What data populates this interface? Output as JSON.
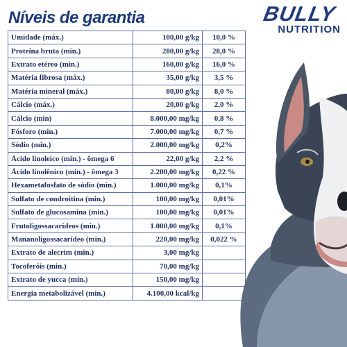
{
  "header": {
    "title": "Níveis de garantia"
  },
  "brand": {
    "name_top": "BULLY",
    "name_bottom": "NUTRITION"
  },
  "table": {
    "rows": [
      {
        "name": "Umidade (máx.)",
        "amount": "100,00 g/kg",
        "percent": "10,0 %"
      },
      {
        "name": "Proteína bruta (min.)",
        "amount": "280,00 g/kg",
        "percent": "28,0 %"
      },
      {
        "name": "Extrato etéreo (min.)",
        "amount": "160,00 g/kg",
        "percent": "16,0 %"
      },
      {
        "name": "Matéria fibrosa (máx.)",
        "amount": "35,00 g/kg",
        "percent": "3,5 %"
      },
      {
        "name": "Matéria mineral (máx.)",
        "amount": "80,00 g/kg",
        "percent": "8,0 %"
      },
      {
        "name": "Cálcio (máx.)",
        "amount": "20,00 g/kg",
        "percent": "2,0 %"
      },
      {
        "name": "Cálcio (min)",
        "amount": "8.000,00 mg/kg",
        "percent": "0,8 %"
      },
      {
        "name": "Fósforo (min.)",
        "amount": "7.000,00 mg/kg",
        "percent": "0,7 %"
      },
      {
        "name": "Sódio (min.)",
        "amount": "2.000,00 mg/kg",
        "percent": "0,2%"
      },
      {
        "name": "Ácido linoleico (min.) - ômega 6",
        "amount": "22,00 g/kg",
        "percent": "2,2 %"
      },
      {
        "name": "Ácido linolênico (min.) - ômega 3",
        "amount": "2.200,00 mg/kg",
        "percent": "0,22 %"
      },
      {
        "name": "Hexametafosfato de sódio (min.)",
        "amount": "1.000,00 mg/kg",
        "percent": "0,1%"
      },
      {
        "name": "Sulfato de condroitina (min.)",
        "amount": "100,00 mg/kg",
        "percent": "0,01%"
      },
      {
        "name": "Sulfato de glucosamina (min.)",
        "amount": "100,00 mg/kg",
        "percent": "0,01%"
      },
      {
        "name": "Frutoligossacarídeos (min.)",
        "amount": "1.000,00 mg/kg",
        "percent": "0,1%"
      },
      {
        "name": "Mananoligossacarídeo (min.)",
        "amount": "220,00 mg/kg",
        "percent": "0,022 %"
      },
      {
        "name": "Extrato de alecrim (min.)",
        "amount": "3,00 mg/kg",
        "percent": ""
      },
      {
        "name": "Tocoferóis (min.)",
        "amount": "70,00 mg/kg",
        "percent": ""
      },
      {
        "name": "Extrato de yucca (min.)",
        "amount": "150,00 mg/kg",
        "percent": ""
      },
      {
        "name": "Energia metabolizável (min.)",
        "amount": "4.100,00 kcal/kg",
        "percent": ""
      }
    ]
  },
  "colors": {
    "title": "#1f3a7a",
    "text": "#1c2f5c",
    "border": "#5a6fa0"
  },
  "images": {
    "dog": "pitbull-dog-illustration"
  }
}
